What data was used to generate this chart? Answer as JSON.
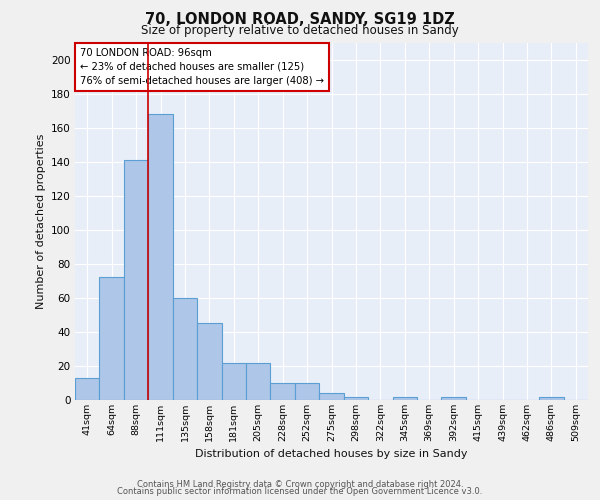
{
  "title1": "70, LONDON ROAD, SANDY, SG19 1DZ",
  "title2": "Size of property relative to detached houses in Sandy",
  "xlabel": "Distribution of detached houses by size in Sandy",
  "ylabel": "Number of detached properties",
  "categories": [
    "41sqm",
    "64sqm",
    "88sqm",
    "111sqm",
    "135sqm",
    "158sqm",
    "181sqm",
    "205sqm",
    "228sqm",
    "252sqm",
    "275sqm",
    "298sqm",
    "322sqm",
    "345sqm",
    "369sqm",
    "392sqm",
    "415sqm",
    "439sqm",
    "462sqm",
    "486sqm",
    "509sqm"
  ],
  "values": [
    13,
    72,
    141,
    168,
    60,
    45,
    22,
    22,
    10,
    10,
    4,
    2,
    0,
    2,
    0,
    2,
    0,
    0,
    0,
    2,
    0
  ],
  "bar_color": "#aec6e8",
  "bar_edge_color": "#5a9fd4",
  "bar_edge_width": 0.8,
  "red_line_x": 2.5,
  "annotation_title": "70 LONDON ROAD: 96sqm",
  "annotation_line1": "← 23% of detached houses are smaller (125)",
  "annotation_line2": "76% of semi-detached houses are larger (408) →",
  "annotation_box_color": "#ffffff",
  "annotation_box_edge_color": "#cc0000",
  "red_line_color": "#cc0000",
  "ylim": [
    0,
    210
  ],
  "yticks": [
    0,
    20,
    40,
    60,
    80,
    100,
    120,
    140,
    160,
    180,
    200
  ],
  "background_color": "#e8eef8",
  "grid_color": "#ffffff",
  "footer1": "Contains HM Land Registry data © Crown copyright and database right 2024.",
  "footer2": "Contains public sector information licensed under the Open Government Licence v3.0."
}
